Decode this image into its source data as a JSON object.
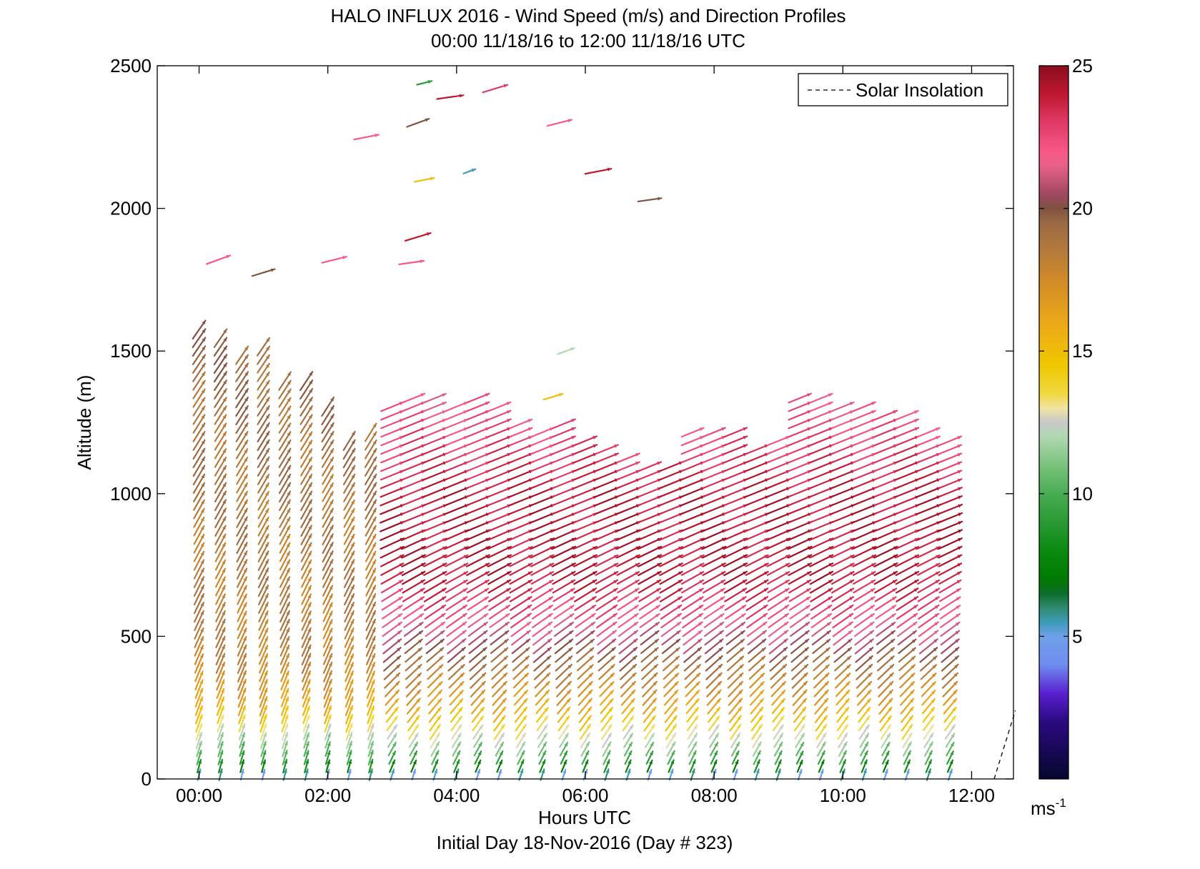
{
  "chart_data": {
    "type": "quiver",
    "title": "HALO INFLUX 2016 - Wind Speed (m/s) and Direction Profiles",
    "subtitle": "00:00 11/18/16 to 12:00 11/18/16  UTC",
    "xlabel": "Hours UTC",
    "xlabel2": "Initial Day 18-Nov-2016 (Day # 323)",
    "ylabel": "Altitude (m)",
    "xlim": [
      -0.65,
      12.65
    ],
    "ylim": [
      0,
      2500
    ],
    "xticks": [
      0,
      2,
      4,
      6,
      8,
      10,
      12
    ],
    "xtick_labels": [
      "00:00",
      "02:00",
      "04:00",
      "06:00",
      "08:00",
      "10:00",
      "12:00"
    ],
    "yticks": [
      0,
      500,
      1000,
      1500,
      2000,
      2500
    ],
    "ytick_labels": [
      "0",
      "500",
      "1000",
      "1500",
      "2000",
      "2500"
    ],
    "legend": {
      "label": "Solar Insolation",
      "placement": "top-right",
      "style": "dashed black line"
    },
    "solar_insolation": [
      [
        12.35,
        0
      ],
      [
        12.68,
        240
      ]
    ],
    "colorbar": {
      "label": "ms",
      "label_exponent": "-1",
      "range": [
        0,
        25
      ],
      "ticks": [
        5,
        10,
        15,
        20,
        25
      ],
      "tick_labels": [
        "5",
        "10",
        "15",
        "20",
        "25"
      ],
      "colors": [
        [
          0,
          "#05072e"
        ],
        [
          2,
          "#2a0a80"
        ],
        [
          3,
          "#5a1fd0"
        ],
        [
          4,
          "#6f8df0"
        ],
        [
          5,
          "#6fa0ea"
        ],
        [
          5.5,
          "#3b9cb8"
        ],
        [
          6,
          "#2f8a70"
        ],
        [
          6.5,
          "#0d6e2a"
        ],
        [
          7,
          "#007a00"
        ],
        [
          8,
          "#0b8a10"
        ],
        [
          9,
          "#2a9a35"
        ],
        [
          10,
          "#48ac52"
        ],
        [
          11,
          "#7cc27e"
        ],
        [
          12,
          "#b0d8b0"
        ],
        [
          12.5,
          "#c8c8c8"
        ],
        [
          13,
          "#f0e3a0"
        ],
        [
          13.5,
          "#f0d840"
        ],
        [
          14.5,
          "#f0c800"
        ],
        [
          16,
          "#eca818"
        ],
        [
          17.5,
          "#d08a28"
        ],
        [
          18.5,
          "#b57a3c"
        ],
        [
          19.5,
          "#9a6844"
        ],
        [
          20,
          "#7f5340"
        ],
        [
          20.5,
          "#a04860"
        ],
        [
          21.5,
          "#e8608a"
        ],
        [
          22,
          "#f85886"
        ],
        [
          23,
          "#e03a66"
        ],
        [
          24,
          "#c01830"
        ],
        [
          25,
          "#8a0c1c"
        ]
      ]
    },
    "profiles": {
      "times": [
        0.0,
        0.333,
        0.667,
        1.0,
        1.333,
        1.667,
        2.0,
        2.333,
        2.667,
        3.0,
        3.333,
        3.667,
        4.0,
        4.333,
        4.667,
        5.0,
        5.333,
        5.667,
        6.0,
        6.333,
        6.667,
        7.0,
        7.333,
        7.667,
        8.0,
        8.333,
        8.667,
        9.0,
        9.333,
        9.667,
        10.0,
        10.333,
        10.667,
        11.0,
        11.333,
        11.667
      ],
      "top_altitude_m": [
        1600,
        1560,
        1500,
        1540,
        1400,
        1400,
        1320,
        1200,
        1240,
        1310,
        1360,
        1360,
        1330,
        1360,
        1320,
        1250,
        1240,
        1250,
        1200,
        1160,
        1150,
        1120,
        1100,
        1220,
        1230,
        1230,
        1180,
        1200,
        1340,
        1360,
        1310,
        1320,
        1280,
        1280,
        1240,
        1200
      ],
      "level_spacing_m": 30,
      "speed_profile_ms": {
        "early_profiles_0000_0300": [
          [
            0,
            4
          ],
          [
            60,
            9
          ],
          [
            150,
            12
          ],
          [
            250,
            16
          ],
          [
            400,
            18
          ],
          [
            800,
            18.5
          ],
          [
            1600,
            19.5
          ]
        ],
        "later_profiles_0300_1200": [
          [
            0,
            4
          ],
          [
            60,
            9
          ],
          [
            130,
            12
          ],
          [
            250,
            16
          ],
          [
            400,
            19
          ],
          [
            550,
            22
          ],
          [
            700,
            24
          ],
          [
            1000,
            24
          ],
          [
            1300,
            22
          ]
        ]
      },
      "direction_note": "winds from the south-southwest near the ground veering to westerly / west-southwesterly aloft"
    },
    "upper_isolated_arrows": [
      {
        "t": 0.3,
        "z": 1820,
        "ms": 22
      },
      {
        "t": 1.0,
        "z": 1775,
        "ms": 20
      },
      {
        "t": 2.1,
        "z": 1820,
        "ms": 22
      },
      {
        "t": 2.6,
        "z": 2250,
        "ms": 22
      },
      {
        "t": 3.3,
        "z": 1810,
        "ms": 22
      },
      {
        "t": 3.4,
        "z": 2300,
        "ms": 20
      },
      {
        "t": 3.4,
        "z": 1900,
        "ms": 24
      },
      {
        "t": 3.5,
        "z": 2440,
        "ms": 9
      },
      {
        "t": 3.5,
        "z": 2100,
        "ms": 15
      },
      {
        "t": 3.9,
        "z": 2390,
        "ms": 24
      },
      {
        "t": 4.2,
        "z": 2130,
        "ms": 5.5
      },
      {
        "t": 4.6,
        "z": 2420,
        "ms": 23
      },
      {
        "t": 5.6,
        "z": 2300,
        "ms": 22
      },
      {
        "t": 6.2,
        "z": 2130,
        "ms": 24
      },
      {
        "t": 7.0,
        "z": 2030,
        "ms": 20
      },
      {
        "t": 5.7,
        "z": 1500,
        "ms": 12
      },
      {
        "t": 5.5,
        "z": 1340,
        "ms": 15
      }
    ]
  }
}
